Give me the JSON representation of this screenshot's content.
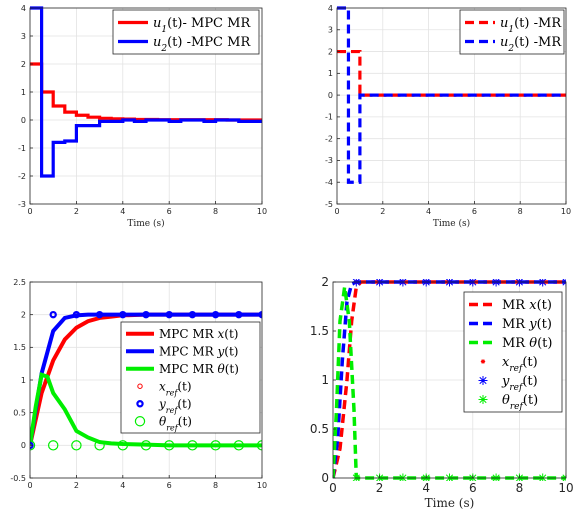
{
  "chart_data": [
    {
      "type": "line",
      "step": true,
      "xlabel": "Time (s)",
      "xlim": [
        0,
        10
      ],
      "ylim": [
        -3,
        4
      ],
      "xticks": [
        0,
        2,
        4,
        6,
        8,
        10
      ],
      "yticks": [
        -3,
        -2,
        -1,
        0,
        1,
        2,
        3,
        4
      ],
      "grid": true,
      "legend_position": "top-right",
      "series": [
        {
          "name": "u1(t)- MPC MR",
          "color": "#ff0000",
          "style": "solid",
          "x": [
            0,
            0.5,
            1,
            1.5,
            2,
            2.5,
            3,
            3.5,
            4,
            4.5,
            5,
            5.5,
            6,
            6.5,
            7,
            7.5,
            8,
            8.5,
            9,
            9.5,
            10
          ],
          "y": [
            2,
            1,
            0.5,
            0.28,
            0.17,
            0.1,
            0.06,
            0.04,
            0.03,
            0.02,
            0.02,
            0.01,
            0.01,
            0.01,
            0.01,
            0.01,
            0.01,
            0,
            0,
            0,
            0
          ]
        },
        {
          "name": "u2(t) -MPC MR",
          "color": "#0000ff",
          "style": "solid",
          "x": [
            0,
            0.5,
            1,
            1.5,
            2,
            2.5,
            3,
            3.5,
            4,
            4.5,
            5,
            5.5,
            6,
            6.5,
            7,
            7.5,
            8,
            8.5,
            9,
            9.5,
            10
          ],
          "y": [
            4,
            -2,
            -0.8,
            -0.75,
            -0.2,
            -0.2,
            -0.05,
            -0.05,
            0,
            -0.05,
            0,
            0,
            -0.05,
            0,
            0,
            -0.05,
            0,
            0,
            -0.05,
            -0.05,
            -0.05
          ]
        }
      ]
    },
    {
      "type": "line",
      "step": true,
      "xlabel": "Time (s)",
      "xlim": [
        0,
        10
      ],
      "ylim": [
        -5,
        4
      ],
      "xticks": [
        0,
        2,
        4,
        6,
        8,
        10
      ],
      "yticks": [
        -5,
        -4,
        -3,
        -2,
        -1,
        0,
        1,
        2,
        3,
        4
      ],
      "grid": true,
      "legend_position": "top-right",
      "series": [
        {
          "name": "u1(t) -MR",
          "color": "#ff0000",
          "style": "dashed",
          "x": [
            0,
            0.5,
            1,
            10
          ],
          "y": [
            2,
            2,
            0,
            0
          ]
        },
        {
          "name": "u2(t) -MR",
          "color": "#0000ff",
          "style": "dashed",
          "x": [
            0,
            0.5,
            1,
            10
          ],
          "y": [
            4,
            -4,
            0,
            0
          ]
        }
      ]
    },
    {
      "type": "line",
      "xlabel": "",
      "xlim": [
        0,
        10
      ],
      "ylim": [
        -0.5,
        2.5
      ],
      "xticks": [
        0,
        2,
        4,
        6,
        8,
        10
      ],
      "yticks": [
        -0.5,
        0,
        0.5,
        1,
        1.5,
        2,
        2.5
      ],
      "grid": true,
      "legend_position": "center-right",
      "series": [
        {
          "name": "MPC MR x(t)",
          "color": "#ff0000",
          "style": "solid",
          "x": [
            0,
            0.5,
            1,
            1.5,
            2,
            2.5,
            3,
            3.5,
            4,
            5,
            6,
            7,
            8,
            9,
            10
          ],
          "y": [
            0,
            0.8,
            1.3,
            1.62,
            1.8,
            1.9,
            1.95,
            1.97,
            1.99,
            2,
            2,
            2,
            2,
            2,
            2
          ]
        },
        {
          "name": "MPC MR y(t)",
          "color": "#0000ff",
          "style": "solid",
          "x": [
            0,
            0.5,
            1,
            1.5,
            2,
            2.5,
            3,
            4,
            5,
            6,
            7,
            8,
            9,
            10
          ],
          "y": [
            0,
            1.1,
            1.75,
            1.95,
            1.99,
            2,
            2,
            2,
            2,
            2,
            2,
            2,
            2,
            2
          ]
        },
        {
          "name": "MPC MR θ(t)",
          "color": "#00ee00",
          "style": "solid",
          "x": [
            0,
            0.25,
            0.5,
            0.75,
            1,
            1.5,
            2,
            2.5,
            3,
            3.5,
            4,
            5,
            6,
            7,
            8,
            9,
            10
          ],
          "y": [
            0,
            0.6,
            1.08,
            1.05,
            0.8,
            0.55,
            0.22,
            0.12,
            0.05,
            0.03,
            0.02,
            0.01,
            0,
            0,
            0,
            0,
            0
          ]
        },
        {
          "name": "x_ref(t)",
          "color": "#ff0000",
          "style": "markers-circle-small",
          "x": [
            0,
            1,
            2,
            3,
            4,
            5,
            6,
            7,
            8,
            9,
            10
          ],
          "y": [
            0,
            2,
            2,
            2,
            2,
            2,
            2,
            2,
            2,
            2,
            2
          ]
        },
        {
          "name": "y_ref(t)",
          "color": "#0000ff",
          "style": "markers-circle-bold",
          "x": [
            0,
            1,
            2,
            3,
            4,
            5,
            6,
            7,
            8,
            9,
            10
          ],
          "y": [
            0,
            2,
            2,
            2,
            2,
            2,
            2,
            2,
            2,
            2,
            2
          ]
        },
        {
          "name": "θ_ref(t)",
          "color": "#00ee00",
          "style": "markers-circle-large",
          "x": [
            0,
            1,
            2,
            3,
            4,
            5,
            6,
            7,
            8,
            9,
            10
          ],
          "y": [
            0,
            0,
            0,
            0,
            0,
            0,
            0,
            0,
            0,
            0,
            0
          ]
        }
      ]
    },
    {
      "type": "line",
      "xlabel": "Time (s)",
      "xlim": [
        0,
        10
      ],
      "ylim": [
        0,
        2
      ],
      "xticks": [
        0,
        2,
        4,
        6,
        8,
        10
      ],
      "yticks": [
        0,
        0.5,
        1,
        1.5,
        2
      ],
      "grid": true,
      "legend_position": "top-right",
      "series": [
        {
          "name": "MR x(t)",
          "color": "#ff0000",
          "style": "dashed",
          "x": [
            0,
            0.3,
            0.6,
            0.8,
            1,
            1.2,
            10
          ],
          "y": [
            0,
            0.3,
            1.0,
            1.6,
            1.95,
            2,
            2
          ]
        },
        {
          "name": "MR y(t)",
          "color": "#0000ff",
          "style": "dashed",
          "x": [
            0,
            0.2,
            0.4,
            0.6,
            0.8,
            1,
            10
          ],
          "y": [
            0,
            0.4,
            1.2,
            1.8,
            1.98,
            2,
            2
          ]
        },
        {
          "name": "MR θ(t)",
          "color": "#00ee00",
          "style": "dashed",
          "x": [
            0,
            0.15,
            0.3,
            0.5,
            0.7,
            0.9,
            1,
            10
          ],
          "y": [
            0,
            0.7,
            1.6,
            1.95,
            1.6,
            0.7,
            0,
            0
          ]
        },
        {
          "name": "x_ref(t)",
          "color": "#ff0000",
          "style": "markers-star-small",
          "x": [
            1,
            2,
            3,
            4,
            5,
            6,
            7,
            8,
            9,
            10
          ],
          "y": [
            2,
            2,
            2,
            2,
            2,
            2,
            2,
            2,
            2,
            2
          ]
        },
        {
          "name": "y_ref(t)",
          "color": "#0000ff",
          "style": "markers-star",
          "x": [
            1,
            2,
            3,
            4,
            5,
            6,
            7,
            8,
            9,
            10
          ],
          "y": [
            2,
            2,
            2,
            2,
            2,
            2,
            2,
            2,
            2,
            2
          ]
        },
        {
          "name": "θ_ref(t)",
          "color": "#00ee00",
          "style": "markers-star",
          "x": [
            1,
            2,
            3,
            4,
            5,
            6,
            7,
            8,
            9,
            10
          ],
          "y": [
            0,
            0,
            0,
            0,
            0,
            0,
            0,
            0,
            0,
            0
          ]
        }
      ]
    }
  ]
}
